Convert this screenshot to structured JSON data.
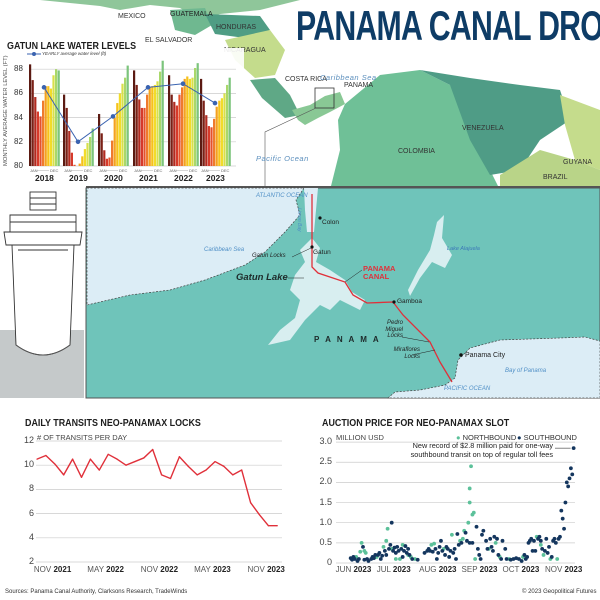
{
  "title": "PANAMA CANAL DROUGHT",
  "overview_map": {
    "countries": [
      "MEXICO",
      "GUATEMALA",
      "HONDURAS",
      "EL SALVADOR",
      "NICARAGUA",
      "COSTA RICA",
      "PANAMA",
      "COLOMBIA",
      "VENEZUELA",
      "GUYANA",
      "BRAZIL"
    ],
    "seas": [
      "Caribbean Sea",
      "Pacific Ocean"
    ]
  },
  "canal_map": {
    "labels": {
      "atlantic": "ATLANTIC OCEAN",
      "limon_bay": "Limon Bay",
      "colon": "Colon",
      "caribbean": "Caribbean Sea",
      "gatun_locks": "Gatun Locks",
      "gatun": "Gatun",
      "gatun_lake": "Gatun Lake",
      "canal": "PANAMA CANAL",
      "lake_alajuela": "Lake Alajuela",
      "gamboa": "Gamboa",
      "pedro_miguel": "Pedro Miguel Locks",
      "miraflores": "Miraflores Locks",
      "panama_city": "Panama City",
      "bay": "Bay of Panama",
      "pacific": "PACIFIC OCEAN",
      "country": "P A N A M A"
    },
    "colors": {
      "land": "#6fc4ba",
      "water": "#dcedf6",
      "lake": "#d8eef0",
      "canal": "#e0303a"
    }
  },
  "chart_data": [
    {
      "type": "bar",
      "title": "GATUN LAKE WATER LEVELS",
      "ylabel": "MONTHLY AVERAGE WATER LEVEL (FT)",
      "ylim": [
        80,
        88.8
      ],
      "yticks": [
        "80",
        "82",
        "84",
        "86",
        "88"
      ],
      "month_range_label": [
        "JAN",
        "DEC"
      ],
      "categories": [
        "2018",
        "2019",
        "2020",
        "2021",
        "2022",
        "2023"
      ],
      "monthly_colors": [
        "#5b1a12",
        "#7a2016",
        "#b02a20",
        "#d63a2b",
        "#e4522d",
        "#ef7a2e",
        "#f4a21f",
        "#f6c21a",
        "#f2dc2a",
        "#d8e04a",
        "#a9d86a",
        "#7cc47c"
      ],
      "series": [
        {
          "name": "monthly",
          "values": [
            [
              88.4,
              87.1,
              85.7,
              84.5,
              84.1,
              85.4,
              86.6,
              86.6,
              86.4,
              87.5,
              88.0,
              87.9
            ],
            [
              85.9,
              84.8,
              82.9,
              81.1,
              80.1,
              80.0,
              80.2,
              80.8,
              81.4,
              81.9,
              82.4,
              83.1
            ],
            [
              84.3,
              82.7,
              81.3,
              80.6,
              80.7,
              82.1,
              84.0,
              85.2,
              86.0,
              86.8,
              87.3,
              88.3
            ],
            [
              87.9,
              86.7,
              85.5,
              84.8,
              84.8,
              85.9,
              86.5,
              86.6,
              86.7,
              87.0,
              87.8,
              88.7
            ],
            [
              87.5,
              85.9,
              85.3,
              85.0,
              85.9,
              86.5,
              87.2,
              87.4,
              87.2,
              87.3,
              88.1,
              88.5
            ],
            [
              87.2,
              85.4,
              84.2,
              83.3,
              83.2,
              83.9,
              84.9,
              85.4,
              85.6,
              86.0,
              86.7,
              87.3
            ]
          ]
        },
        {
          "name": "YEARLY average water level (ft)",
          "color": "#3a63b0",
          "values": [
            86.5,
            82.0,
            84.1,
            86.5,
            86.8,
            85.2
          ]
        }
      ],
      "grid": true
    },
    {
      "type": "line",
      "title": "DAILY TRANSITS NEO-PANAMAX LOCKS",
      "ylabel": "# OF TRANSITS PER DAY",
      "ylim": [
        2,
        12
      ],
      "yticks": [
        "2",
        "4",
        "6",
        "8",
        "10",
        "12"
      ],
      "xticks": [
        {
          "month": "2021-11",
          "m": "NOV",
          "y": "2021"
        },
        {
          "month": "2022-05",
          "m": "MAY",
          "y": "2022"
        },
        {
          "month": "2022-11",
          "m": "NOV",
          "y": "2022"
        },
        {
          "month": "2023-05",
          "m": "MAY",
          "y": "2023"
        },
        {
          "month": "2023-11",
          "m": "NOV",
          "y": "2023"
        }
      ],
      "color": "#e0303a",
      "x": [
        "2021-10",
        "2021-11",
        "2021-12",
        "2022-01",
        "2022-02",
        "2022-03",
        "2022-04",
        "2022-05",
        "2022-06",
        "2022-07",
        "2022-08",
        "2022-09",
        "2022-10",
        "2022-11",
        "2022-12",
        "2023-01",
        "2023-02",
        "2023-03",
        "2023-04",
        "2023-05",
        "2023-06",
        "2023-07",
        "2023-08",
        "2023-09",
        "2023-10",
        "2023-11",
        "2023-12",
        "2024-01"
      ],
      "values": [
        10.5,
        10.8,
        10.1,
        9.2,
        10.5,
        9.0,
        10.5,
        9.6,
        10.9,
        10.5,
        10.0,
        10.3,
        10.6,
        11.3,
        9.2,
        8.9,
        10.7,
        9.9,
        9.2,
        9.6,
        10.3,
        9.9,
        9.2,
        9.6,
        6.9,
        5.9,
        5.0,
        5.0
      ],
      "grid": true
    },
    {
      "type": "scatter",
      "title": "AUCTION PRICE FOR NEO-PANAMAX SLOT",
      "ylabel": "MILLION USD",
      "ylim": [
        0,
        3.0
      ],
      "yticks": [
        "0",
        "0.5",
        "1.0",
        "1.5",
        "2.0",
        "2.5",
        "3.0"
      ],
      "xlim": [
        "2023-05-22",
        "2023-11-12"
      ],
      "xticks": [
        {
          "date": "2023-06-01",
          "m": "JUN",
          "y": "2023"
        },
        {
          "date": "2023-07-01",
          "m": "JUL",
          "y": "2023"
        },
        {
          "date": "2023-08-01",
          "m": "AUG",
          "y": "2023"
        },
        {
          "date": "2023-09-01",
          "m": "SEP",
          "y": "2023"
        },
        {
          "date": "2023-10-01",
          "m": "OCT",
          "y": "2023"
        },
        {
          "date": "2023-11-01",
          "m": "NOV",
          "y": "2023"
        }
      ],
      "legend_position": "top-right",
      "annotation": "New record of $2.8 million paid for one-way southbound transit on top of regular toll fees",
      "annotation_lines": [
        "New record of $2.8 million paid for one-way",
        "southbound transit on top of regular toll fees"
      ],
      "series": [
        {
          "name": "NORTHBOUND",
          "color": "#5cc19a",
          "points": [
            [
              "2023-06-05",
              0.15
            ],
            [
              "2023-06-08",
              0.28
            ],
            [
              "2023-06-09",
              0.5
            ],
            [
              "2023-06-11",
              0.3
            ],
            [
              "2023-06-12",
              0.25
            ],
            [
              "2023-06-20",
              0.15
            ],
            [
              "2023-06-25",
              0.4
            ],
            [
              "2023-06-27",
              0.55
            ],
            [
              "2023-06-28",
              0.85
            ],
            [
              "2023-07-01",
              0.35
            ],
            [
              "2023-07-04",
              0.1
            ],
            [
              "2023-07-07",
              0.1
            ],
            [
              "2023-07-09",
              0.45
            ],
            [
              "2023-07-13",
              0.2
            ],
            [
              "2023-07-15",
              0.15
            ],
            [
              "2023-07-18",
              0.1
            ],
            [
              "2023-07-30",
              0.45
            ],
            [
              "2023-08-01",
              0.48
            ],
            [
              "2023-08-08",
              0.35
            ],
            [
              "2023-08-14",
              0.7
            ],
            [
              "2023-08-20",
              0.55
            ],
            [
              "2023-08-22",
              0.6
            ],
            [
              "2023-08-23",
              0.8
            ],
            [
              "2023-08-26",
              1.0
            ],
            [
              "2023-08-27",
              1.85
            ],
            [
              "2023-08-27",
              1.5
            ],
            [
              "2023-08-28",
              2.4
            ],
            [
              "2023-08-29",
              1.2
            ],
            [
              "2023-08-30",
              1.25
            ],
            [
              "2023-08-31",
              0.1
            ],
            [
              "2023-09-10",
              0.35
            ],
            [
              "2023-09-15",
              0.5
            ],
            [
              "2023-09-18",
              0.15
            ],
            [
              "2023-09-25",
              0.1
            ],
            [
              "2023-10-05",
              0.15
            ],
            [
              "2023-10-15",
              0.65
            ],
            [
              "2023-10-18",
              0.45
            ],
            [
              "2023-10-20",
              0.2
            ],
            [
              "2023-10-25",
              0.1
            ],
            [
              "2023-10-30",
              0.1
            ]
          ]
        },
        {
          "name": "SOUTHBOUND",
          "color": "#14365e",
          "points": [
            [
              "2023-06-01",
              0.12
            ],
            [
              "2023-06-02",
              0.08
            ],
            [
              "2023-06-03",
              0.15
            ],
            [
              "2023-06-04",
              0.1
            ],
            [
              "2023-06-06",
              0.05
            ],
            [
              "2023-06-07",
              0.1
            ],
            [
              "2023-06-10",
              0.4
            ],
            [
              "2023-06-11",
              0.08
            ],
            [
              "2023-06-13",
              0.1
            ],
            [
              "2023-06-14",
              0.05
            ],
            [
              "2023-06-16",
              0.1
            ],
            [
              "2023-06-17",
              0.15
            ],
            [
              "2023-06-18",
              0.12
            ],
            [
              "2023-06-19",
              0.2
            ],
            [
              "2023-06-21",
              0.2
            ],
            [
              "2023-06-22",
              0.25
            ],
            [
              "2023-06-23",
              0.1
            ],
            [
              "2023-06-24",
              0.18
            ],
            [
              "2023-06-26",
              0.3
            ],
            [
              "2023-06-27",
              0.2
            ],
            [
              "2023-06-29",
              0.35
            ],
            [
              "2023-06-30",
              0.45
            ],
            [
              "2023-07-01",
              1.0
            ],
            [
              "2023-07-02",
              0.3
            ],
            [
              "2023-07-03",
              0.38
            ],
            [
              "2023-07-04",
              0.25
            ],
            [
              "2023-07-05",
              0.4
            ],
            [
              "2023-07-06",
              0.3
            ],
            [
              "2023-07-08",
              0.35
            ],
            [
              "2023-07-09",
              0.15
            ],
            [
              "2023-07-10",
              0.3
            ],
            [
              "2023-07-11",
              0.42
            ],
            [
              "2023-07-12",
              0.25
            ],
            [
              "2023-07-13",
              0.35
            ],
            [
              "2023-07-14",
              0.2
            ],
            [
              "2023-07-16",
              0.1
            ],
            [
              "2023-07-20",
              0.08
            ],
            [
              "2023-07-25",
              0.25
            ],
            [
              "2023-07-27",
              0.3
            ],
            [
              "2023-07-28",
              0.35
            ],
            [
              "2023-07-29",
              0.3
            ],
            [
              "2023-07-31",
              0.28
            ],
            [
              "2023-08-02",
              0.35
            ],
            [
              "2023-08-03",
              0.1
            ],
            [
              "2023-08-04",
              0.25
            ],
            [
              "2023-08-05",
              0.4
            ],
            [
              "2023-08-06",
              0.55
            ],
            [
              "2023-08-07",
              0.3
            ],
            [
              "2023-08-09",
              0.2
            ],
            [
              "2023-08-10",
              0.4
            ],
            [
              "2023-08-11",
              0.35
            ],
            [
              "2023-08-12",
              0.15
            ],
            [
              "2023-08-13",
              0.3
            ],
            [
              "2023-08-15",
              0.25
            ],
            [
              "2023-08-16",
              0.35
            ],
            [
              "2023-08-17",
              0.1
            ],
            [
              "2023-08-18",
              0.72
            ],
            [
              "2023-08-19",
              0.45
            ],
            [
              "2023-08-21",
              0.5
            ],
            [
              "2023-08-24",
              0.75
            ],
            [
              "2023-08-25",
              0.55
            ],
            [
              "2023-08-27",
              0.5
            ],
            [
              "2023-08-29",
              0.5
            ],
            [
              "2023-09-01",
              0.9
            ],
            [
              "2023-09-02",
              0.35
            ],
            [
              "2023-09-03",
              0.2
            ],
            [
              "2023-09-04",
              0.1
            ],
            [
              "2023-09-05",
              0.7
            ],
            [
              "2023-09-06",
              0.8
            ],
            [
              "2023-09-08",
              0.55
            ],
            [
              "2023-09-09",
              0.35
            ],
            [
              "2023-09-11",
              0.6
            ],
            [
              "2023-09-12",
              0.4
            ],
            [
              "2023-09-13",
              0.3
            ],
            [
              "2023-09-14",
              0.65
            ],
            [
              "2023-09-16",
              0.6
            ],
            [
              "2023-09-17",
              0.2
            ],
            [
              "2023-09-19",
              0.1
            ],
            [
              "2023-09-20",
              0.55
            ],
            [
              "2023-09-22",
              0.35
            ],
            [
              "2023-09-23",
              0.1
            ],
            [
              "2023-09-26",
              0.08
            ],
            [
              "2023-09-28",
              0.1
            ],
            [
              "2023-09-30",
              0.12
            ],
            [
              "2023-10-02",
              0.1
            ],
            [
              "2023-10-04",
              0.05
            ],
            [
              "2023-10-06",
              0.2
            ],
            [
              "2023-10-07",
              0.1
            ],
            [
              "2023-10-08",
              0.15
            ],
            [
              "2023-10-09",
              0.5
            ],
            [
              "2023-10-10",
              0.55
            ],
            [
              "2023-10-11",
              0.6
            ],
            [
              "2023-10-12",
              0.3
            ],
            [
              "2023-10-13",
              0.55
            ],
            [
              "2023-10-14",
              0.3
            ],
            [
              "2023-10-16",
              0.6
            ],
            [
              "2023-10-17",
              0.65
            ],
            [
              "2023-10-18",
              0.55
            ],
            [
              "2023-10-19",
              0.35
            ],
            [
              "2023-10-21",
              0.3
            ],
            [
              "2023-10-22",
              0.6
            ],
            [
              "2023-10-23",
              0.25
            ],
            [
              "2023-10-24",
              0.4
            ],
            [
              "2023-10-26",
              0.15
            ],
            [
              "2023-10-27",
              0.55
            ],
            [
              "2023-10-28",
              0.6
            ],
            [
              "2023-10-29",
              0.5
            ],
            [
              "2023-10-31",
              0.6
            ],
            [
              "2023-11-01",
              0.65
            ],
            [
              "2023-11-02",
              1.3
            ],
            [
              "2023-11-03",
              1.1
            ],
            [
              "2023-11-04",
              0.85
            ],
            [
              "2023-11-05",
              1.5
            ],
            [
              "2023-11-06",
              2.0
            ],
            [
              "2023-11-07",
              1.9
            ],
            [
              "2023-11-08",
              2.1
            ],
            [
              "2023-11-09",
              2.35
            ],
            [
              "2023-11-10",
              2.2
            ],
            [
              "2023-11-11",
              2.85
            ]
          ]
        }
      ],
      "grid": true
    }
  ],
  "footer": {
    "sources": "Sources: Panama Canal Authority, Clarksons Research, TradeWinds",
    "copyright": "© 2023 Geopolitical Futures"
  }
}
